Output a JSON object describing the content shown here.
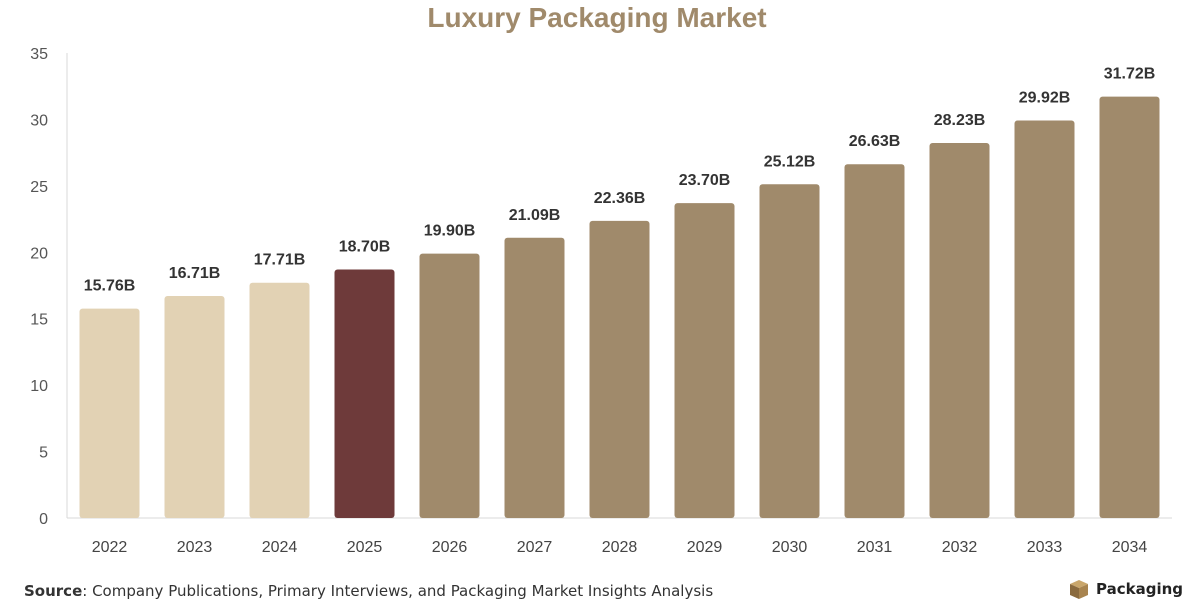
{
  "chart_data": {
    "type": "bar",
    "title": "Luxury Packaging Market",
    "categories": [
      "2022",
      "2023",
      "2024",
      "2025",
      "2026",
      "2027",
      "2028",
      "2029",
      "2030",
      "2031",
      "2032",
      "2033",
      "2034"
    ],
    "values": [
      15.76,
      16.71,
      17.71,
      18.7,
      19.9,
      21.09,
      22.36,
      23.7,
      25.12,
      26.63,
      28.23,
      29.92,
      31.72
    ],
    "data_labels": [
      "15.76B",
      "16.71B",
      "17.71B",
      "18.70B",
      "19.90B",
      "21.09B",
      "22.36B",
      "23.70B",
      "25.12B",
      "26.63B",
      "28.23B",
      "29.92B",
      "31.72B"
    ],
    "bar_colors": [
      "#e2d2b4",
      "#e2d2b4",
      "#e2d2b4",
      "#6e3a3a",
      "#a08a6b",
      "#a08a6b",
      "#a08a6b",
      "#a08a6b",
      "#a08a6b",
      "#a08a6b",
      "#a08a6b",
      "#a08a6b",
      "#a08a6b"
    ],
    "ylim": [
      0,
      35
    ],
    "yticks": [
      0,
      5,
      10,
      15,
      20,
      25,
      30,
      35
    ],
    "xlabel": "",
    "ylabel": "",
    "grid": false,
    "legend": "none"
  },
  "footer": {
    "source_label": "Source",
    "source_text": ": Company Publications, Primary Interviews, and Packaging Market Insights Analysis",
    "brand_name": "Packaging"
  },
  "colors": {
    "title": "#a08a6b",
    "historical": "#e2d2b4",
    "current": "#6e3a3a",
    "forecast": "#a08a6b"
  }
}
